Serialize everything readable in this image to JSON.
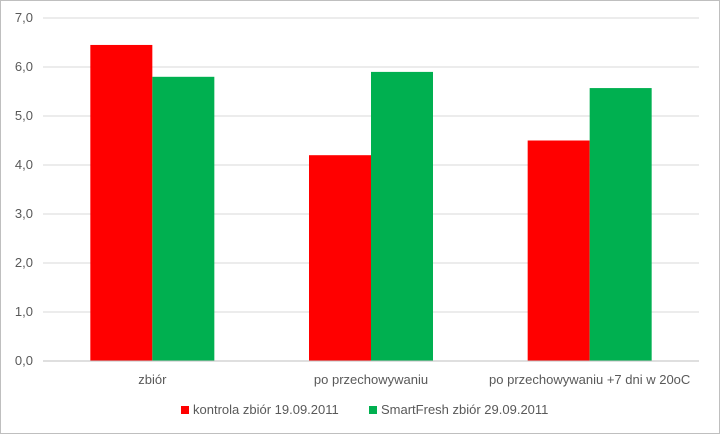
{
  "chart_data": {
    "type": "bar",
    "categories": [
      "zbiór",
      "po przechowywaniu",
      "po przechowywaniu +7 dni w 20oC"
    ],
    "series": [
      {
        "name": "kontrola zbiór 19.09.2011",
        "color": "#ff0000",
        "values": [
          6.45,
          4.2,
          4.5
        ]
      },
      {
        "name": "SmartFresh zbiór 29.09.2011",
        "color": "#00b050",
        "values": [
          5.8,
          5.9,
          5.57
        ]
      }
    ],
    "ylim": [
      0,
      7
    ],
    "yticks": [
      "0,0",
      "1,0",
      "2,0",
      "3,0",
      "4,0",
      "5,0",
      "6,0",
      "7,0"
    ],
    "grid": true,
    "legend": "bottom",
    "title": "",
    "xlabel": "",
    "ylabel": ""
  }
}
